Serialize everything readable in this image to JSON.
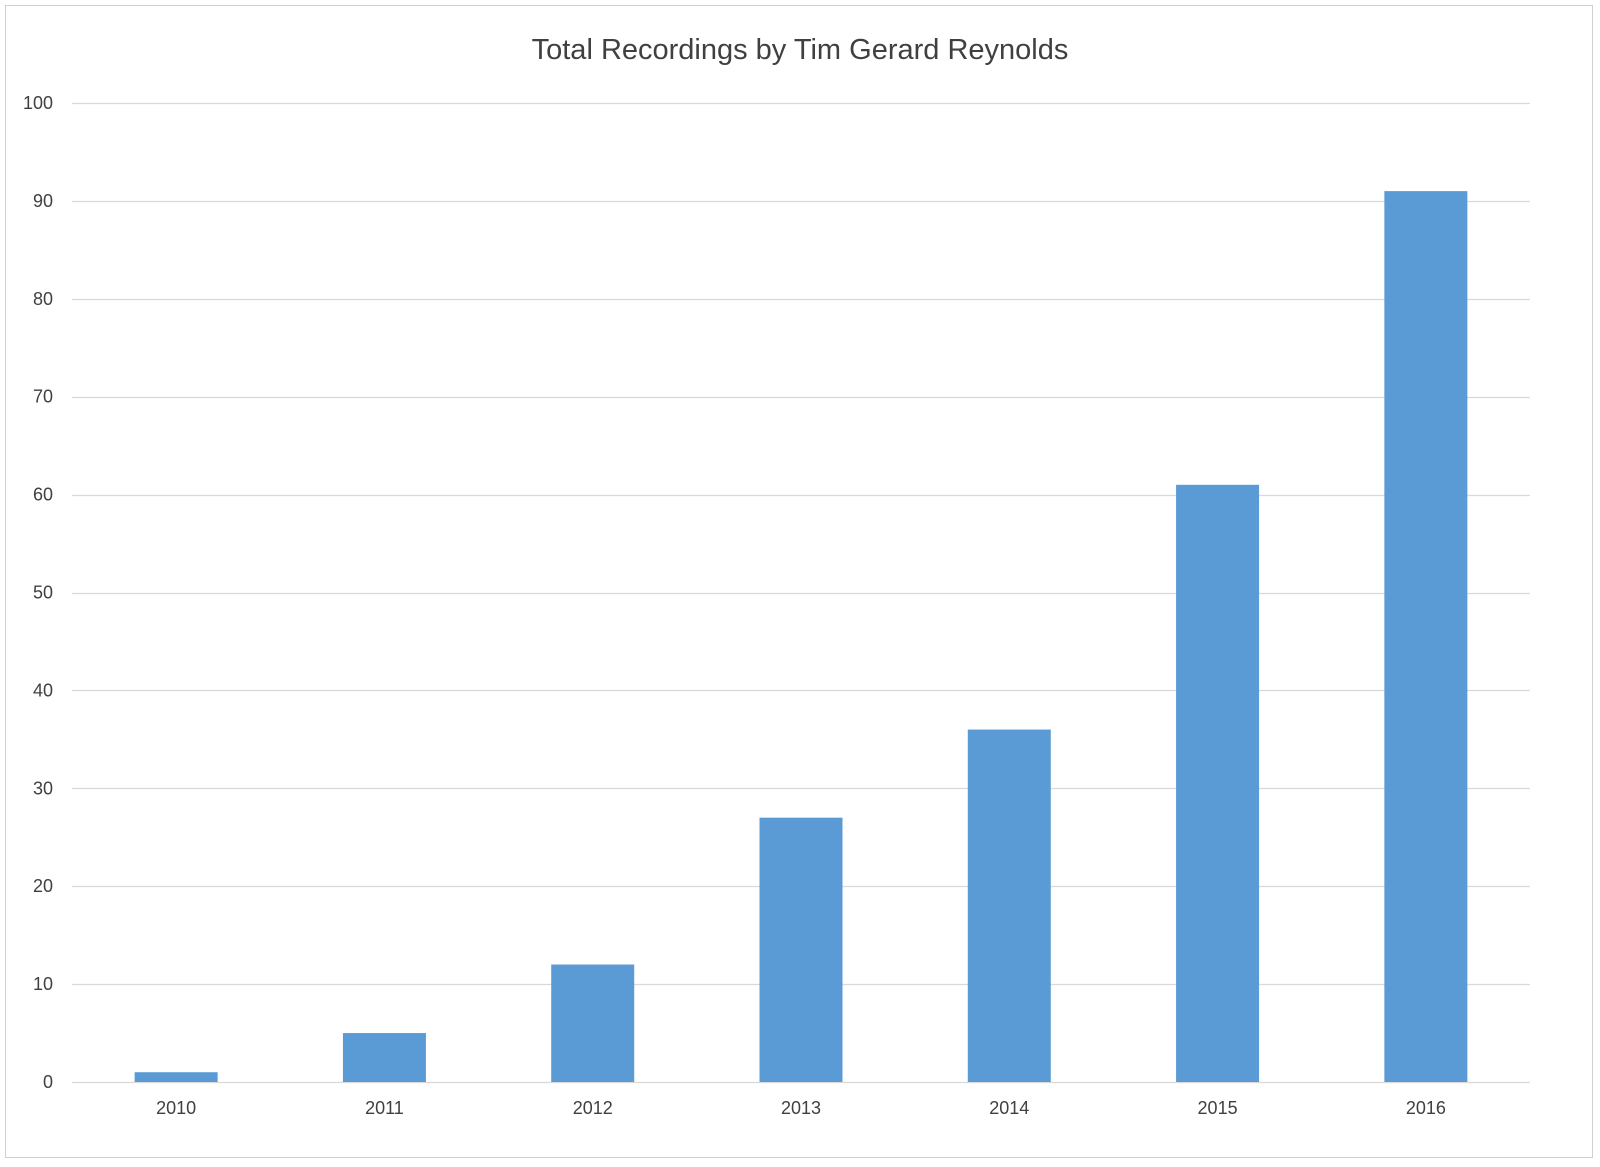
{
  "chart_data": {
    "type": "bar",
    "title": "Total Recordings by Tim Gerard Reynolds",
    "xlabel": "",
    "ylabel": "",
    "categories": [
      "2010",
      "2011",
      "2012",
      "2013",
      "2014",
      "2015",
      "2016"
    ],
    "values": [
      1,
      5,
      12,
      27,
      36,
      61,
      91
    ],
    "ylim": [
      0,
      100
    ],
    "yticks": [
      0,
      10,
      20,
      30,
      40,
      50,
      60,
      70,
      80,
      90,
      100
    ],
    "grid": true,
    "legend": "none",
    "bar_color": "#5B9BD5",
    "gridline_color": "#D9D9D9",
    "text_color": "#404040"
  }
}
